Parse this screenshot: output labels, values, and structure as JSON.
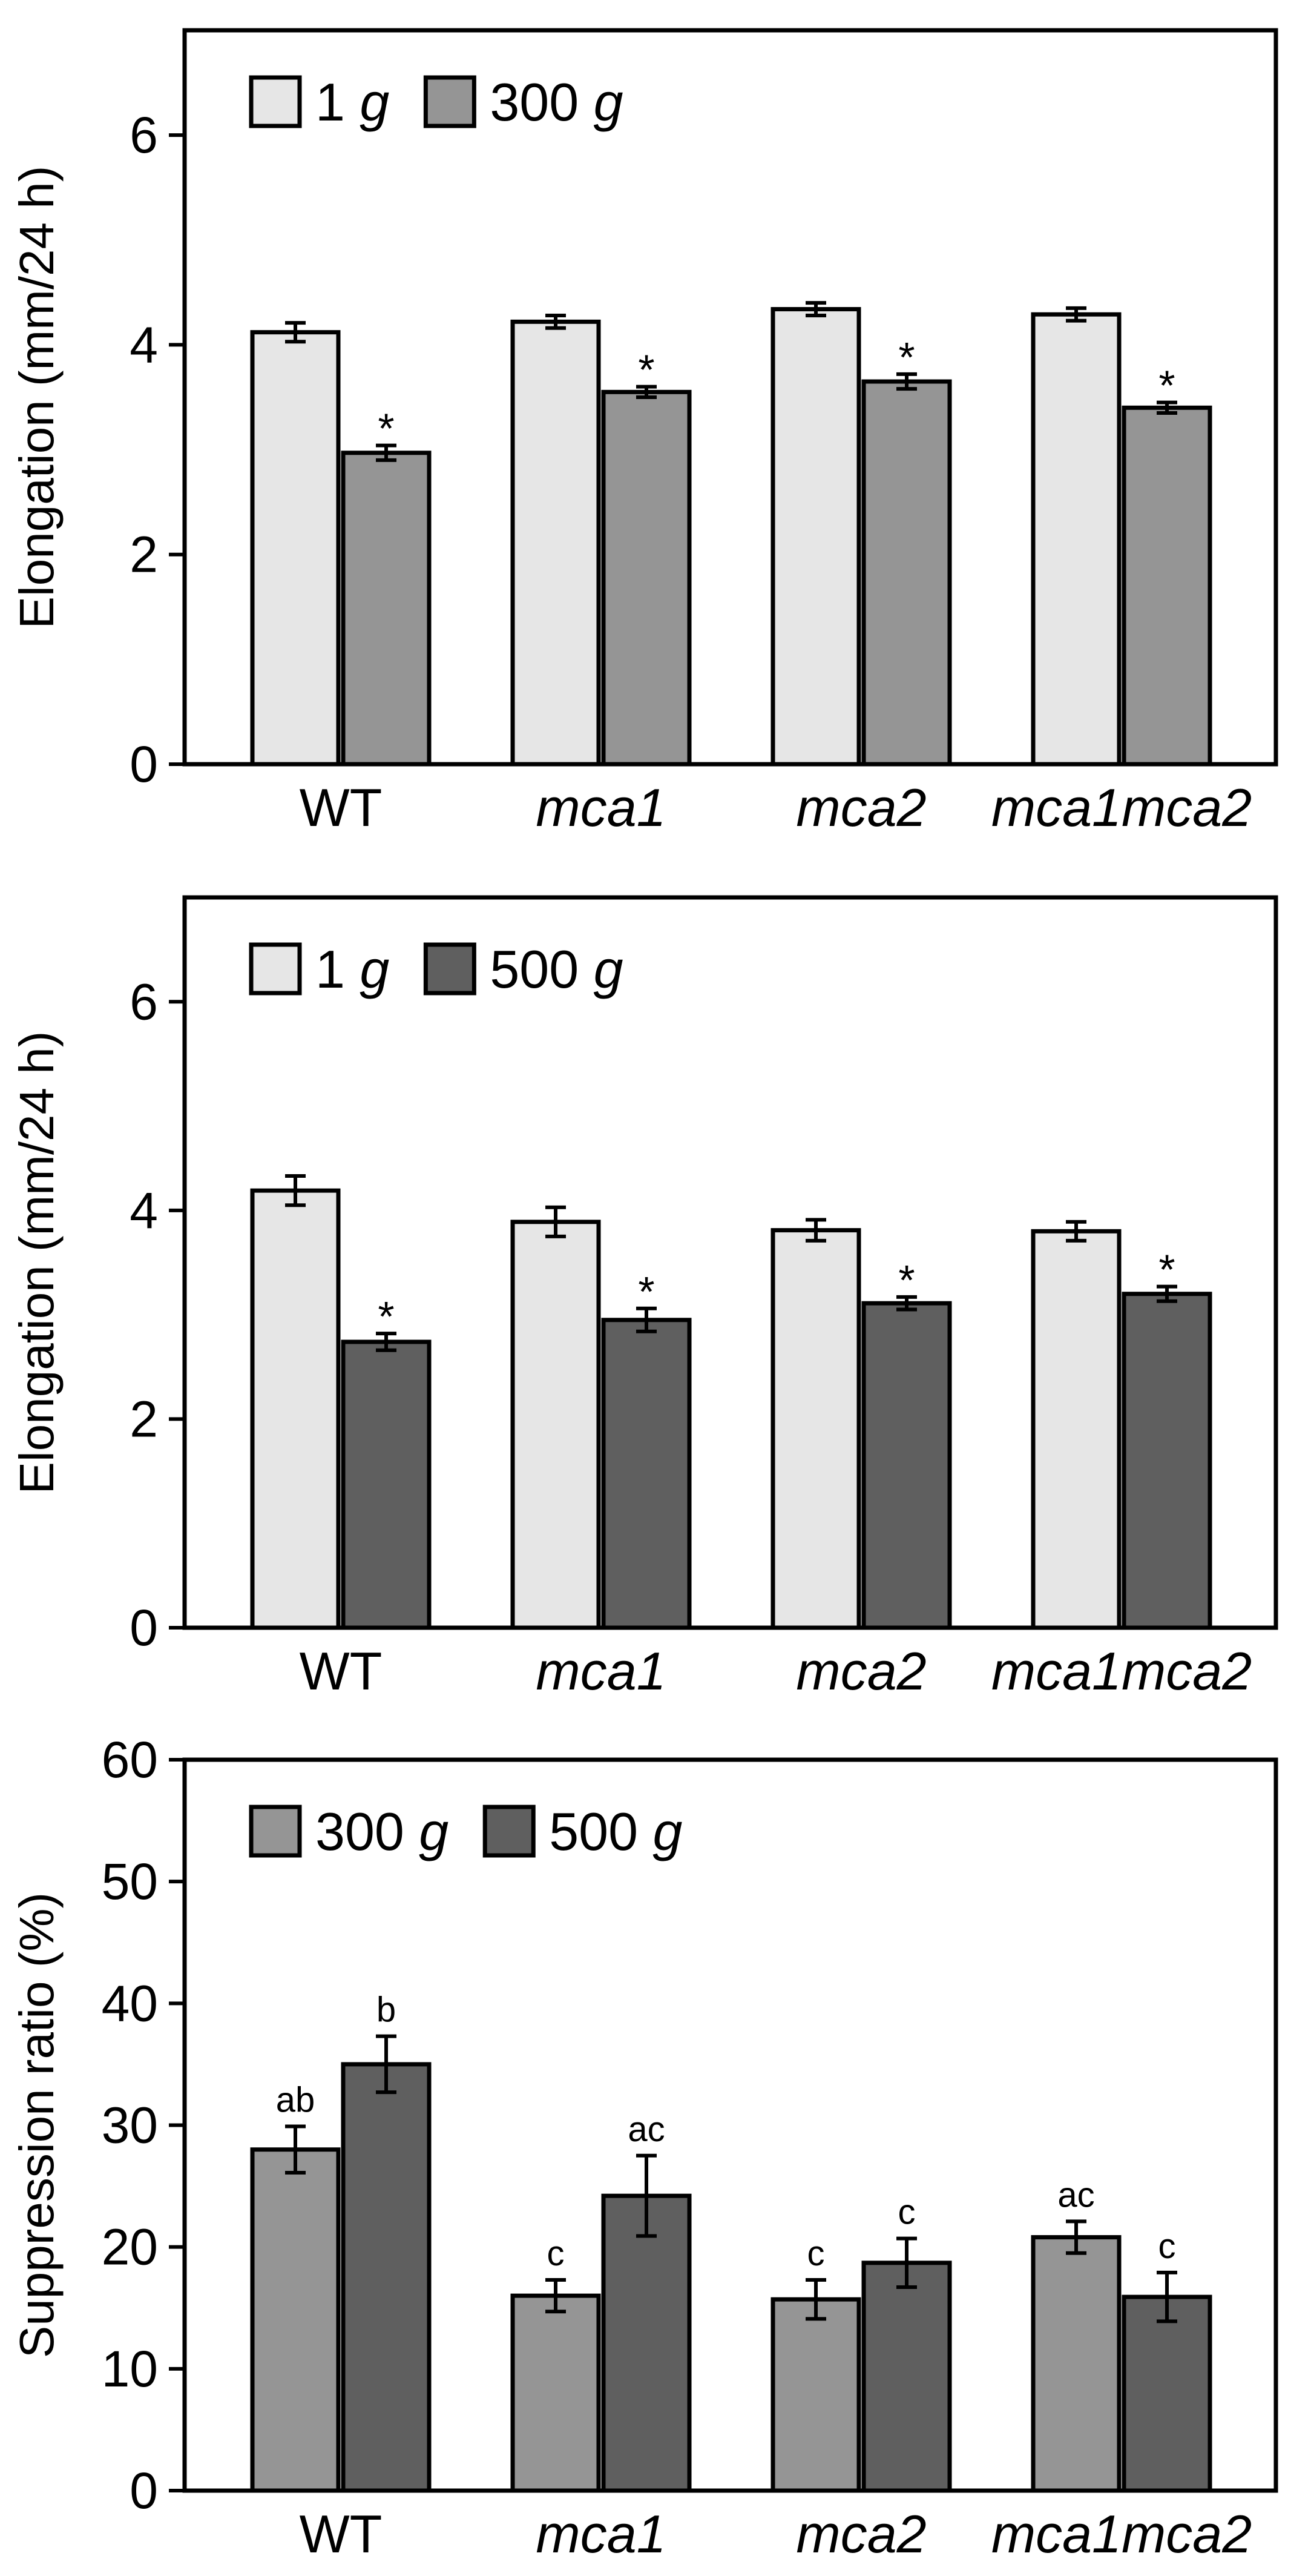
{
  "chart_data": [
    {
      "type": "bar",
      "ylabel": "Elongation (mm/24 h)",
      "ylim": [
        0,
        7
      ],
      "yticks": [
        0,
        2,
        4,
        6
      ],
      "categories": [
        {
          "text": "WT",
          "italic": false
        },
        {
          "text": "mca1",
          "italic": true
        },
        {
          "text": "mca2",
          "italic": true
        },
        {
          "text": "mca1mca2",
          "italic": true
        }
      ],
      "legend_position": "top-left",
      "series": [
        {
          "num": "1",
          "unit": "g",
          "color": "#e6e6e6",
          "values": [
            4.12,
            4.22,
            4.34,
            4.29
          ],
          "errors": [
            0.09,
            0.06,
            0.06,
            0.06
          ],
          "labels": [
            "",
            "",
            "",
            ""
          ]
        },
        {
          "num": "300",
          "unit": "g",
          "color": "#959595",
          "values": [
            2.97,
            3.55,
            3.65,
            3.4
          ],
          "errors": [
            0.07,
            0.05,
            0.07,
            0.05
          ],
          "labels": [
            "*",
            "*",
            "*",
            "*"
          ]
        }
      ]
    },
    {
      "type": "bar",
      "ylabel": "Elongation (mm/24 h)",
      "ylim": [
        0,
        7
      ],
      "yticks": [
        0,
        2,
        4,
        6
      ],
      "categories": [
        {
          "text": "WT",
          "italic": false
        },
        {
          "text": "mca1",
          "italic": true
        },
        {
          "text": "mca2",
          "italic": true
        },
        {
          "text": "mca1mca2",
          "italic": true
        }
      ],
      "legend_position": "top-left",
      "series": [
        {
          "num": "1",
          "unit": "g",
          "color": "#e6e6e6",
          "values": [
            4.19,
            3.89,
            3.81,
            3.8
          ],
          "errors": [
            0.14,
            0.14,
            0.1,
            0.09
          ],
          "labels": [
            "",
            "",
            "",
            ""
          ]
        },
        {
          "num": "500",
          "unit": "g",
          "color": "#5f5f5f",
          "values": [
            2.74,
            2.95,
            3.11,
            3.2
          ],
          "errors": [
            0.08,
            0.11,
            0.06,
            0.07
          ],
          "labels": [
            "*",
            "*",
            "*",
            "*"
          ]
        }
      ]
    },
    {
      "type": "bar",
      "ylabel": "Suppression ratio (%)",
      "ylim": [
        0,
        60
      ],
      "yticks": [
        0,
        10,
        20,
        30,
        40,
        50,
        60
      ],
      "categories": [
        {
          "text": "WT",
          "italic": false
        },
        {
          "text": "mca1",
          "italic": true
        },
        {
          "text": "mca2",
          "italic": true
        },
        {
          "text": "mca1mca2",
          "italic": true
        }
      ],
      "legend_position": "top-left",
      "series": [
        {
          "num": "300",
          "unit": "g",
          "color": "#959595",
          "values": [
            28.0,
            16.0,
            15.7,
            20.8
          ],
          "errors": [
            1.9,
            1.3,
            1.6,
            1.3
          ],
          "labels": [
            "ab",
            "c",
            "c",
            "ac"
          ]
        },
        {
          "num": "500",
          "unit": "g",
          "color": "#5f5f5f",
          "values": [
            35.0,
            24.2,
            18.7,
            15.9
          ],
          "errors": [
            2.3,
            3.3,
            2.0,
            2.0
          ],
          "labels": [
            "b",
            "ac",
            "c",
            "c"
          ]
        }
      ]
    }
  ]
}
